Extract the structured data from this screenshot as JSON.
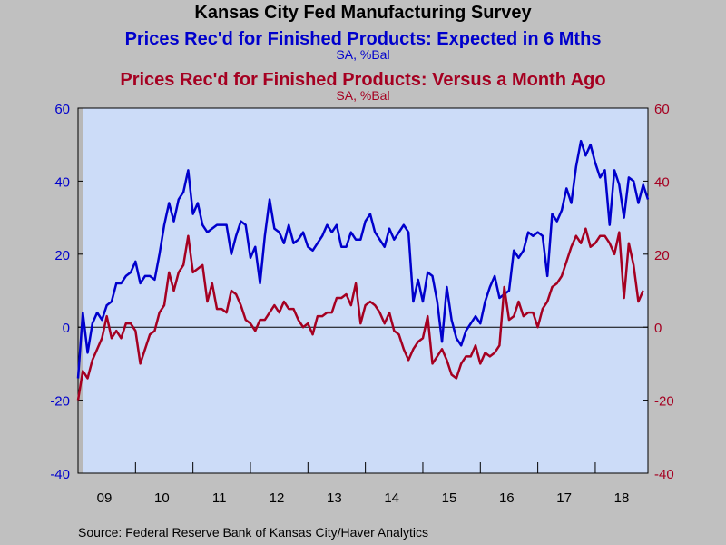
{
  "chart_data": {
    "type": "line",
    "title": "Kansas City Fed Manufacturing Survey",
    "series": [
      {
        "name": "Prices Rec'd for Finished Products: Expected in 6 Mths",
        "unit": "SA, %Bal",
        "axis": "left",
        "color": "#0000cc",
        "start": "2009-01",
        "values": [
          -14,
          4,
          -7,
          1,
          4,
          2,
          6,
          7,
          12,
          12,
          14,
          15,
          18,
          12,
          14,
          14,
          13,
          20,
          28,
          34,
          29,
          35,
          37,
          43,
          31,
          34,
          28,
          26,
          27,
          28,
          28,
          28,
          20,
          25,
          29,
          28,
          19,
          22,
          12,
          25,
          35,
          27,
          26,
          23,
          28,
          23,
          24,
          26,
          22,
          21,
          23,
          25,
          28,
          26,
          28,
          22,
          22,
          26,
          24,
          24,
          29,
          31,
          26,
          24,
          22,
          27,
          24,
          26,
          28,
          26,
          7,
          13,
          7,
          15,
          14,
          7,
          -4,
          11,
          2,
          -3,
          -5,
          -1,
          1,
          3,
          1,
          7,
          11,
          14,
          8,
          9,
          10,
          21,
          19,
          21,
          26,
          25,
          26,
          25,
          14,
          31,
          29,
          32,
          38,
          34,
          44,
          51,
          47,
          50,
          45,
          41,
          43,
          28,
          43,
          39,
          30,
          41,
          40,
          34,
          39,
          35
        ]
      },
      {
        "name": "Prices Rec'd for Finished Products: Versus a Month Ago",
        "unit": "SA, %Bal",
        "axis": "right",
        "color": "#a50021",
        "start": "2009-01",
        "values": [
          -20,
          -12,
          -14,
          -9,
          -6,
          -3,
          3,
          -3,
          -1,
          -3,
          1,
          1,
          -1,
          -10,
          -6,
          -2,
          -1,
          4,
          6,
          15,
          10,
          15,
          17,
          25,
          15,
          16,
          17,
          7,
          12,
          5,
          5,
          4,
          10,
          9,
          6,
          2,
          1,
          -1,
          2,
          2,
          4,
          6,
          4,
          7,
          5,
          5,
          2,
          0,
          1,
          -2,
          3,
          3,
          4,
          4,
          8,
          8,
          9,
          6,
          12,
          1,
          6,
          7,
          6,
          4,
          1,
          4,
          -1,
          -2,
          -6,
          -9,
          -6,
          -4,
          -3,
          3,
          -10,
          -8,
          -6,
          -9,
          -13,
          -14,
          -10,
          -8,
          -8,
          -5,
          -10,
          -7,
          -8,
          -7,
          -5,
          11,
          2,
          3,
          7,
          3,
          4,
          4,
          0,
          5,
          7,
          11,
          12,
          14,
          18,
          22,
          25,
          23,
          27,
          22,
          23,
          25,
          25,
          23,
          20,
          26,
          8,
          23,
          17,
          7,
          10
        ]
      }
    ],
    "x_tick_labels": [
      "09",
      "10",
      "11",
      "12",
      "13",
      "14",
      "15",
      "16",
      "17",
      "18"
    ],
    "y_left": {
      "min": -40,
      "max": 60,
      "ticks": [
        -40,
        -20,
        0,
        20,
        40,
        60
      ]
    },
    "y_right": {
      "min": -40,
      "max": 60,
      "ticks": [
        -40,
        -20,
        0,
        20,
        40,
        60
      ]
    },
    "grid": false,
    "zero_line": true
  },
  "titles": {
    "main": "Kansas City Fed Manufacturing Survey",
    "blue_title": "Prices Rec'd for Finished Products: Expected in 6 Mths",
    "blue_unit": "SA, %Bal",
    "red_title": "Prices Rec'd for Finished Products: Versus a Month Ago",
    "red_unit": "SA, %Bal"
  },
  "source": "Source:  Federal Reserve Bank of Kansas City/Haver Analytics",
  "colors": {
    "plot_bg": "#ccdcf8",
    "page_bg": "#c0c0c0",
    "blue": "#0000cc",
    "red": "#a50021",
    "shade": "#b8b8b8"
  }
}
